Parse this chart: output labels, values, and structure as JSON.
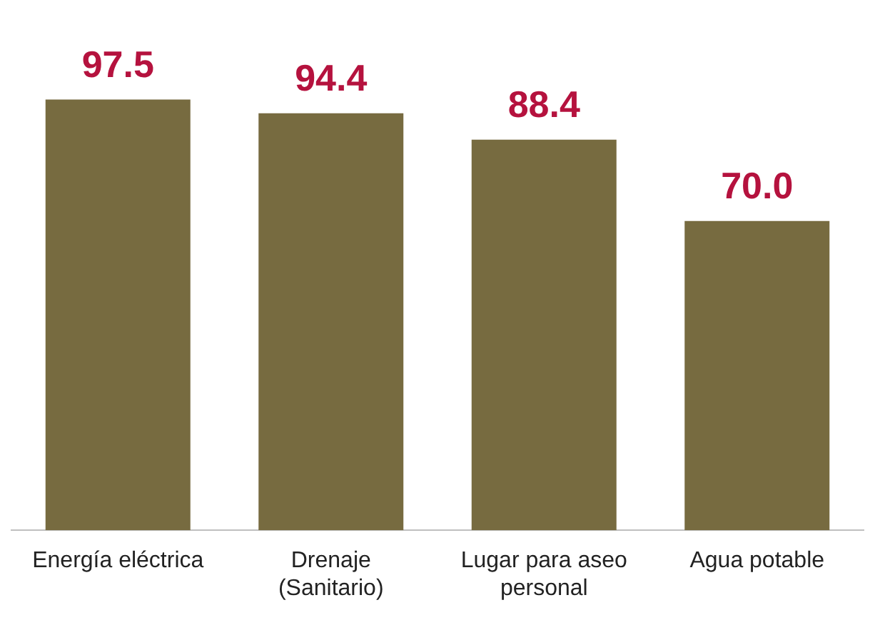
{
  "chart_data": {
    "type": "bar",
    "categories": [
      "Energía eléctrica",
      "Drenaje (Sanitario)",
      "Lugar para aseo personal",
      "Agua potable"
    ],
    "values": [
      97.5,
      94.4,
      88.4,
      70.0
    ],
    "value_labels": [
      "97.5",
      "94.4",
      "88.4",
      "70.0"
    ],
    "color": "#776b40",
    "tick_labels": "x",
    "grid": false,
    "legend": false
  }
}
